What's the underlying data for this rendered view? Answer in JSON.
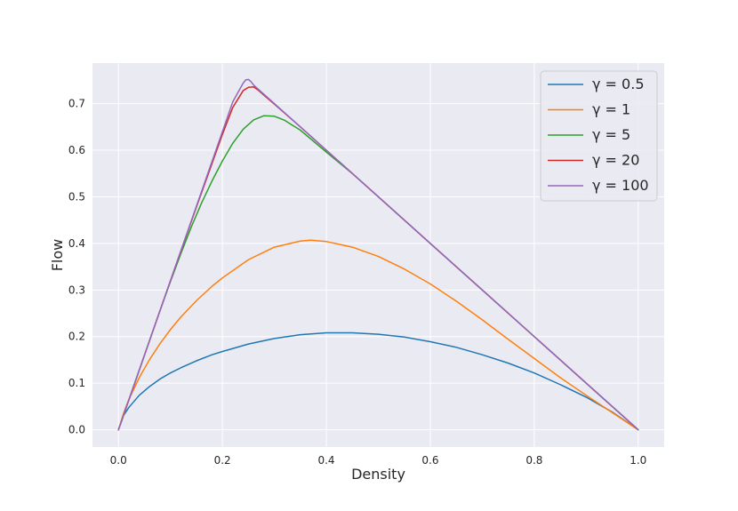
{
  "chart_data": {
    "type": "line",
    "xlabel": "Density",
    "ylabel": "Flow",
    "xlim": [
      -0.05,
      1.05
    ],
    "ylim": [
      -0.037,
      0.787
    ],
    "xticks": [
      0.0,
      0.2,
      0.4,
      0.6,
      0.8,
      1.0
    ],
    "xtick_labels": [
      "0.0",
      "0.2",
      "0.4",
      "0.6",
      "0.8",
      "1.0"
    ],
    "yticks": [
      0.0,
      0.1,
      0.2,
      0.3,
      0.4,
      0.5,
      0.6,
      0.7
    ],
    "ytick_labels": [
      "0.0",
      "0.1",
      "0.2",
      "0.3",
      "0.4",
      "0.5",
      "0.6",
      "0.7"
    ],
    "grid": true,
    "legend_position": "top-right",
    "background": "#eaeaf2",
    "series": [
      {
        "name": "γ = 0.5",
        "color": "#1f77b4",
        "x": [
          0,
          0.01,
          0.02,
          0.04,
          0.06,
          0.08,
          0.1,
          0.12,
          0.15,
          0.18,
          0.2,
          0.25,
          0.3,
          0.35,
          0.4,
          0.45,
          0.5,
          0.55,
          0.6,
          0.65,
          0.7,
          0.75,
          0.8,
          0.85,
          0.9,
          0.95,
          1.0
        ],
        "y": [
          0,
          0.031,
          0.048,
          0.074,
          0.093,
          0.109,
          0.122,
          0.133,
          0.148,
          0.161,
          0.168,
          0.184,
          0.196,
          0.204,
          0.208,
          0.208,
          0.205,
          0.199,
          0.189,
          0.177,
          0.161,
          0.143,
          0.122,
          0.097,
          0.07,
          0.038,
          0
        ]
      },
      {
        "name": "γ = 1",
        "color": "#ff7f0e",
        "x": [
          0,
          0.01,
          0.02,
          0.04,
          0.06,
          0.08,
          0.1,
          0.12,
          0.15,
          0.18,
          0.2,
          0.25,
          0.3,
          0.35,
          0.37,
          0.4,
          0.45,
          0.5,
          0.55,
          0.6,
          0.65,
          0.7,
          0.75,
          0.8,
          0.85,
          0.9,
          0.95,
          1.0
        ],
        "y": [
          0,
          0.036,
          0.065,
          0.112,
          0.151,
          0.185,
          0.215,
          0.242,
          0.277,
          0.308,
          0.326,
          0.365,
          0.392,
          0.405,
          0.407,
          0.404,
          0.392,
          0.372,
          0.345,
          0.313,
          0.276,
          0.236,
          0.194,
          0.153,
          0.112,
          0.074,
          0.037,
          0
        ]
      },
      {
        "name": "γ = 5",
        "color": "#2ca02c",
        "x": [
          0,
          0.02,
          0.04,
          0.06,
          0.08,
          0.1,
          0.12,
          0.14,
          0.16,
          0.18,
          0.2,
          0.22,
          0.24,
          0.26,
          0.28,
          0.3,
          0.32,
          0.35,
          0.4,
          0.45,
          0.5,
          0.6,
          0.7,
          0.8,
          0.9,
          1.0
        ],
        "y": [
          0,
          0.064,
          0.128,
          0.192,
          0.256,
          0.318,
          0.378,
          0.435,
          0.487,
          0.534,
          0.577,
          0.615,
          0.645,
          0.665,
          0.674,
          0.673,
          0.664,
          0.643,
          0.596,
          0.55,
          0.5,
          0.4,
          0.3,
          0.2,
          0.1,
          0
        ]
      },
      {
        "name": "γ = 20",
        "color": "#d62728",
        "x": [
          0,
          0.05,
          0.1,
          0.15,
          0.2,
          0.22,
          0.24,
          0.25,
          0.26,
          0.27,
          0.28,
          0.3,
          0.35,
          0.4,
          0.5,
          0.6,
          0.7,
          0.8,
          0.9,
          1.0
        ],
        "y": [
          0,
          0.16,
          0.32,
          0.478,
          0.634,
          0.692,
          0.728,
          0.735,
          0.736,
          0.728,
          0.718,
          0.699,
          0.65,
          0.6,
          0.5,
          0.4,
          0.3,
          0.2,
          0.1,
          0
        ]
      },
      {
        "name": "γ = 100",
        "color": "#9467bd",
        "x": [
          0,
          0.05,
          0.1,
          0.15,
          0.2,
          0.22,
          0.24,
          0.245,
          0.25,
          0.255,
          0.26,
          0.27,
          0.3,
          0.4,
          0.5,
          0.6,
          0.7,
          0.8,
          0.9,
          1.0
        ],
        "y": [
          0,
          0.16,
          0.32,
          0.48,
          0.64,
          0.704,
          0.744,
          0.751,
          0.752,
          0.747,
          0.74,
          0.73,
          0.7,
          0.6,
          0.5,
          0.4,
          0.3,
          0.2,
          0.1,
          0
        ]
      }
    ]
  }
}
